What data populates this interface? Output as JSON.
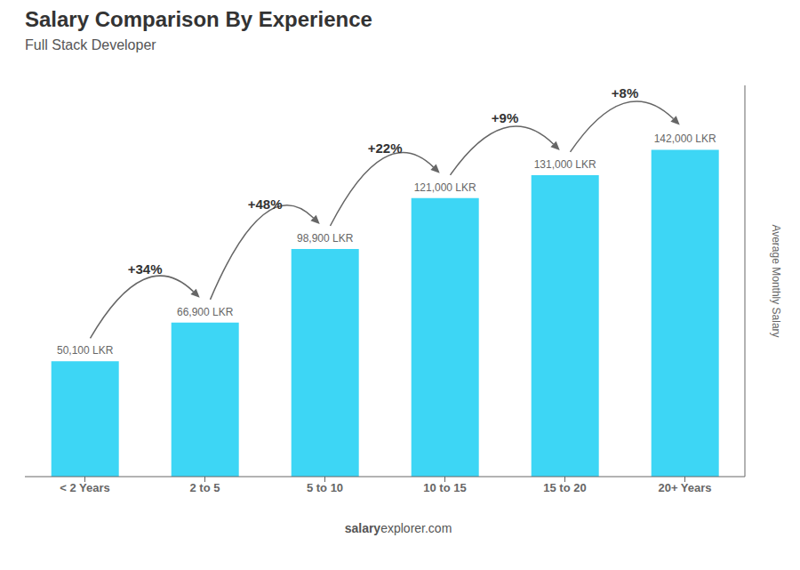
{
  "chart_data": {
    "type": "bar",
    "title": "Salary Comparison By Experience",
    "subtitle": "Full Stack Developer",
    "categories": [
      "< 2 Years",
      "2 to 5",
      "5 to 10",
      "10 to 15",
      "15 to 20",
      "20+ Years"
    ],
    "values": [
      50100,
      66900,
      98900,
      121000,
      131000,
      142000
    ],
    "value_labels": [
      "50,100 LKR",
      "66,900 LKR",
      "98,900 LKR",
      "121,000 LKR",
      "131,000 LKR",
      "142,000 LKR"
    ],
    "data_labels": true,
    "annotations": [
      "+34%",
      "+48%",
      "+22%",
      "+9%",
      "+8%"
    ],
    "color": "#3DD6F5",
    "ylabel": "Average Monthly Salary",
    "ylim": [
      0,
      170000
    ],
    "tick_labels": "x",
    "grid": false,
    "footer": [
      "salary",
      "explorer.com"
    ]
  }
}
